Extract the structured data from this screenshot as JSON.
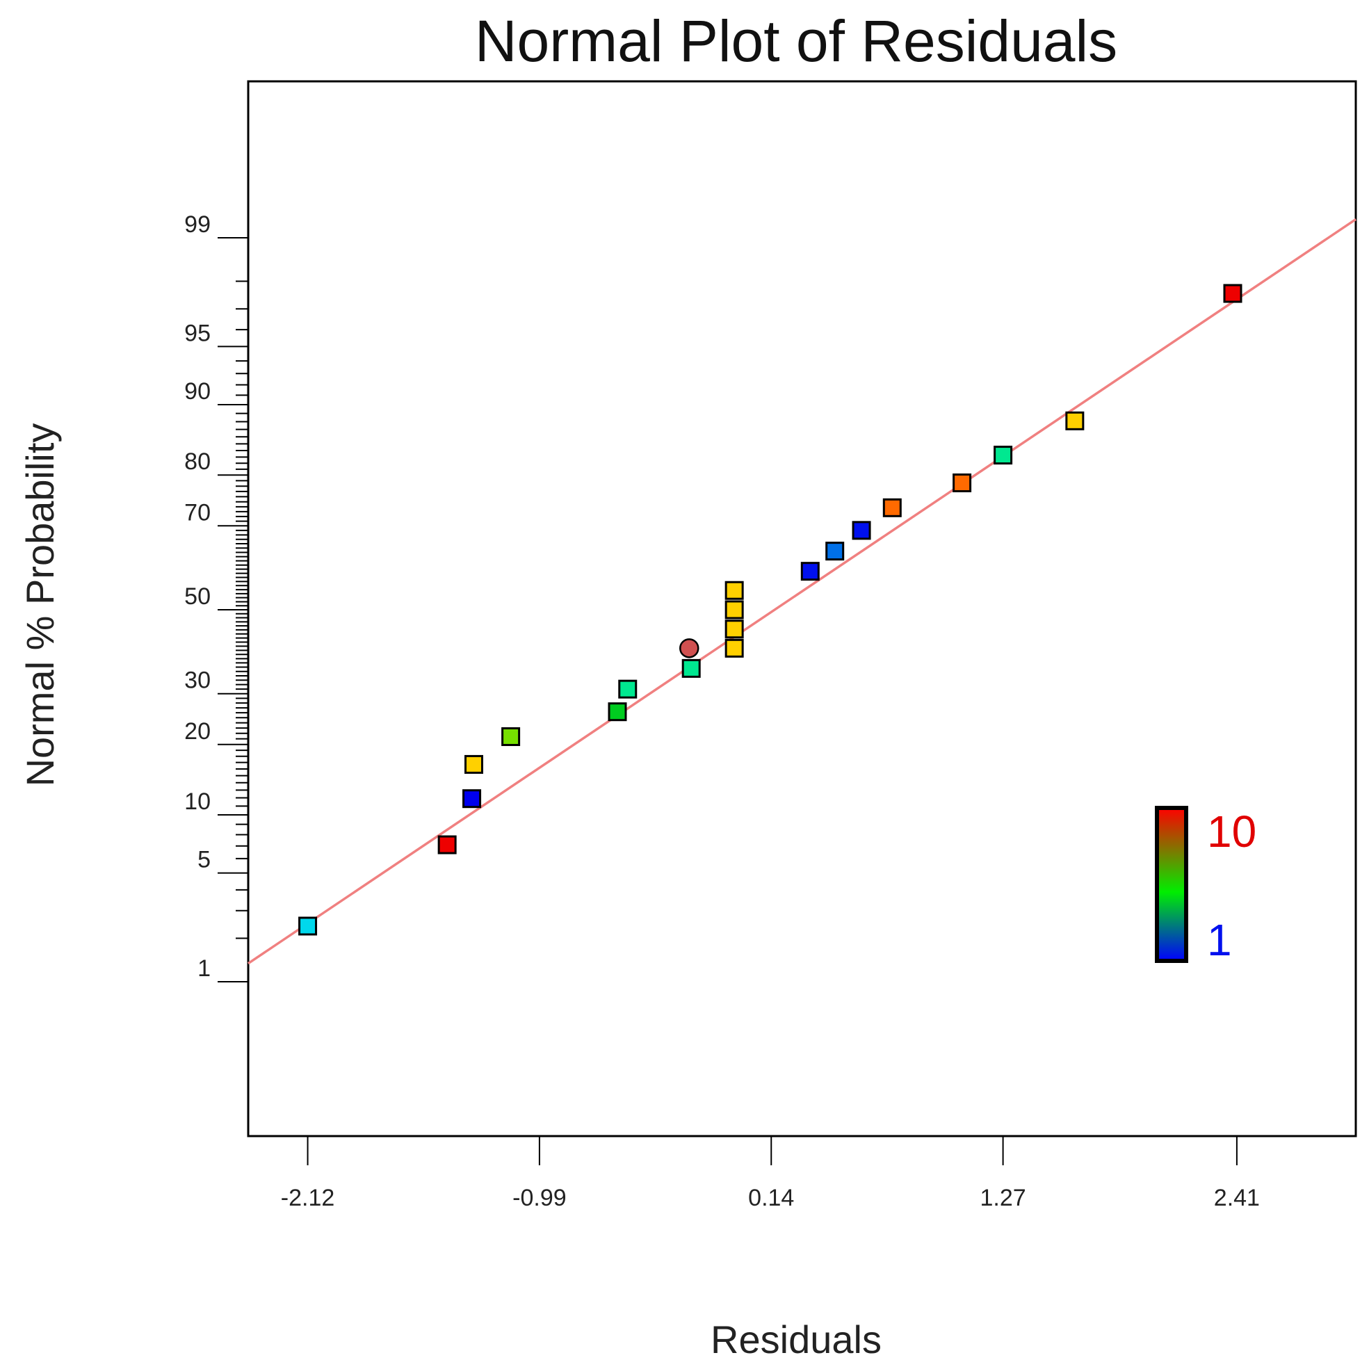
{
  "chart_data": {
    "type": "scatter",
    "title": "Normal Plot of Residuals",
    "xlabel": "Residuals",
    "ylabel": "Normal % Probability",
    "xlim": [
      -2.41,
      2.99
    ],
    "x_ticks": [
      -2.12,
      -0.99,
      0.14,
      1.27,
      2.41
    ],
    "x_tick_labels": [
      "-2.12",
      "-0.99",
      "0.14",
      "1.27",
      "2.41"
    ],
    "y_scale": "normal-probability",
    "y_ticks": [
      1,
      5,
      10,
      20,
      30,
      50,
      70,
      80,
      90,
      95,
      99
    ],
    "y_tick_labels": [
      "1",
      "5",
      "10",
      "20",
      "30",
      "50",
      "70",
      "80",
      "90",
      "95",
      "99"
    ],
    "y_minor_ticks": [
      2,
      3,
      4,
      6,
      7,
      8,
      9,
      11,
      12,
      13,
      14,
      15,
      16,
      17,
      18,
      19,
      21,
      22,
      23,
      24,
      25,
      26,
      27,
      28,
      29,
      31,
      32,
      33,
      34,
      35,
      36,
      37,
      38,
      39,
      40,
      41,
      42,
      43,
      44,
      45,
      46,
      47,
      48,
      49,
      51,
      52,
      53,
      54,
      55,
      56,
      57,
      58,
      59,
      60,
      61,
      62,
      63,
      64,
      65,
      66,
      67,
      68,
      69,
      71,
      72,
      73,
      74,
      75,
      76,
      77,
      78,
      79,
      81,
      82,
      83,
      84,
      85,
      86,
      87,
      88,
      89,
      91,
      92,
      93,
      94,
      96,
      97,
      98
    ],
    "fit_line": {
      "x": [
        -2.41,
        2.99
      ],
      "y": [
        1.35,
        99.27
      ]
    },
    "series": [
      {
        "name": "Residuals",
        "marker": "square",
        "points": [
          {
            "x": -2.12,
            "y": 2.4,
            "color": "#00d8ec"
          },
          {
            "x": -1.44,
            "y": 7.1,
            "color": "#ee0000"
          },
          {
            "x": -1.32,
            "y": 11.9,
            "color": "#0000ee"
          },
          {
            "x": -1.31,
            "y": 16.7,
            "color": "#ffd000"
          },
          {
            "x": -1.13,
            "y": 21.4,
            "color": "#77e000"
          },
          {
            "x": -0.61,
            "y": 26.2,
            "color": "#00cc20"
          },
          {
            "x": -0.56,
            "y": 31.0,
            "color": "#00e890"
          },
          {
            "x": -0.25,
            "y": 35.7,
            "color": "#00e890"
          },
          {
            "x": -0.26,
            "y": 40.5,
            "color": "#d05050",
            "marker": "circle"
          },
          {
            "x": -0.04,
            "y": 40.5,
            "color": "#ffd000"
          },
          {
            "x": -0.04,
            "y": 45.2,
            "color": "#ffd000"
          },
          {
            "x": -0.04,
            "y": 50.0,
            "color": "#ffd000"
          },
          {
            "x": -0.04,
            "y": 54.8,
            "color": "#ffd000"
          },
          {
            "x": 0.33,
            "y": 59.5,
            "color": "#0010ee"
          },
          {
            "x": 0.45,
            "y": 64.3,
            "color": "#0070e8"
          },
          {
            "x": 0.58,
            "y": 69.0,
            "color": "#0010ee"
          },
          {
            "x": 0.73,
            "y": 73.8,
            "color": "#ff6a00"
          },
          {
            "x": 1.07,
            "y": 78.6,
            "color": "#ff6a00"
          },
          {
            "x": 1.27,
            "y": 83.3,
            "color": "#00e890"
          },
          {
            "x": 1.62,
            "y": 88.1,
            "color": "#ffd000"
          },
          {
            "x": 2.39,
            "y": 97.6,
            "color": "#ee0000"
          }
        ]
      }
    ],
    "legend": {
      "position": "bottom-right",
      "type": "colorbar",
      "min_label": "1",
      "max_label": "10",
      "min_color": "#0000ff",
      "max_color": "#ff0000"
    },
    "colors": {
      "fit_line": "#f08080",
      "axis": "#000000",
      "legend_max": "#e00000",
      "legend_min": "#0010ee"
    }
  }
}
